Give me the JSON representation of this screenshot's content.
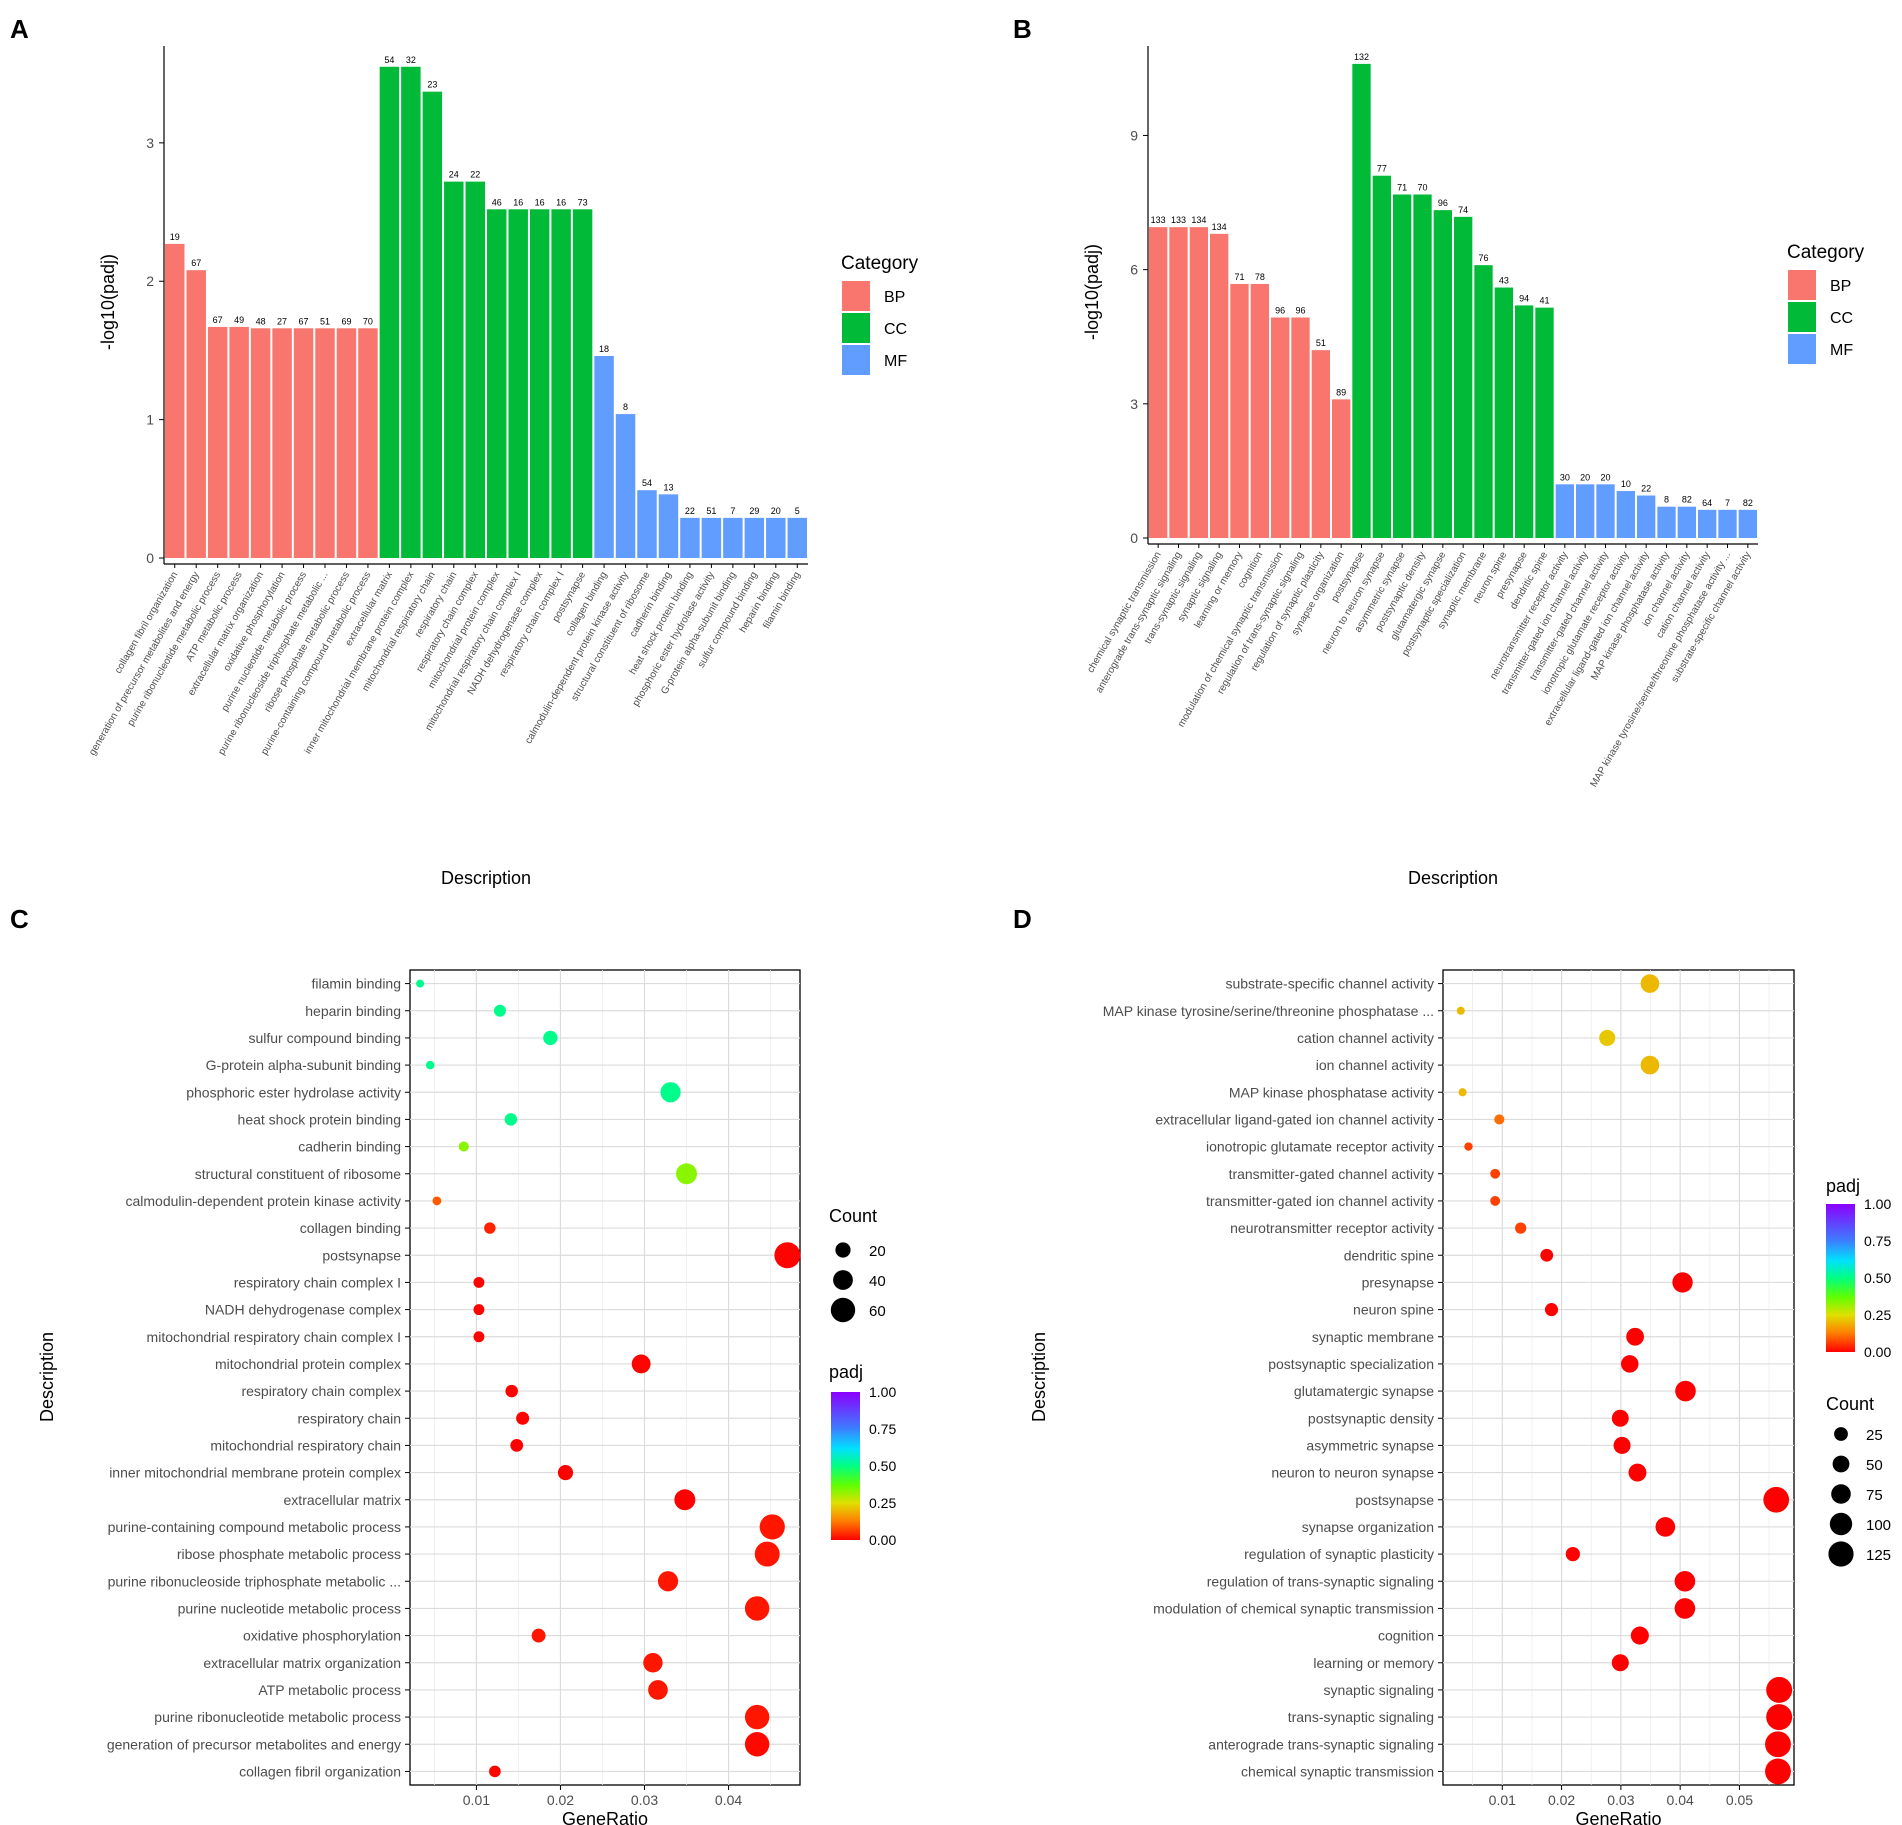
{
  "figure": {
    "panel_letters": [
      "A",
      "B",
      "C",
      "D"
    ],
    "category_legend": {
      "title": "Category",
      "items": [
        {
          "key": "BP",
          "color": "#F8766D"
        },
        {
          "key": "CC",
          "color": "#00BA38"
        },
        {
          "key": "MF",
          "color": "#619CFF"
        }
      ]
    },
    "colorbar": {
      "title": "padj",
      "ticks": [
        "1.00",
        "0.75",
        "0.50",
        "0.25",
        "0.00"
      ]
    }
  },
  "chart_data": [
    {
      "panel": "A",
      "type": "bar",
      "xlabel": "Description",
      "ylabel": "-log10(padj)",
      "ylim": [
        0,
        3.7
      ],
      "yticks": [
        0,
        1,
        2,
        3
      ],
      "categories": [
        "collagen fibril organization",
        "generation of precursor metabolites and energy",
        "purine ribonucleotide metabolic process",
        "ATP metabolic process",
        "extracellular matrix organization",
        "oxidative phosphorylation",
        "purine nucleotide metabolic process",
        "purine ribonucleoside triphosphate metabolic ...",
        "ribose phosphate metabolic process",
        "purine-containing compound metabolic process",
        "extracellular matrix",
        "inner mitochondrial membrane protein complex",
        "mitochondrial respiratory chain",
        "respiratory chain",
        "respiratory chain complex",
        "mitochondrial protein complex",
        "mitochondrial respiratory chain complex I",
        "NADH dehydrogenase complex",
        "respiratory chain complex I",
        "postsynapse",
        "collagen binding",
        "calmodulin-dependent protein kinase activity",
        "structural constituent of ribosome",
        "cadherin binding",
        "heat shock protein binding",
        "phosphoric ester hydrolase activity",
        "G-protein alpha-subunit binding",
        "sulfur compound binding",
        "heparin binding",
        "filamin binding"
      ],
      "values": [
        2.27,
        2.08,
        1.67,
        1.67,
        1.66,
        1.66,
        1.66,
        1.66,
        1.66,
        1.66,
        3.55,
        3.55,
        3.37,
        2.72,
        2.72,
        2.52,
        2.52,
        2.52,
        2.52,
        2.52,
        1.46,
        1.04,
        0.49,
        0.46,
        0.29,
        0.29,
        0.29,
        0.29,
        0.29,
        0.29
      ],
      "groups": [
        "BP",
        "BP",
        "BP",
        "BP",
        "BP",
        "BP",
        "BP",
        "BP",
        "BP",
        "BP",
        "CC",
        "CC",
        "CC",
        "CC",
        "CC",
        "CC",
        "CC",
        "CC",
        "CC",
        "CC",
        "MF",
        "MF",
        "MF",
        "MF",
        "MF",
        "MF",
        "MF",
        "MF",
        "MF",
        "MF"
      ],
      "counts": [
        19,
        67,
        67,
        49,
        48,
        27,
        67,
        51,
        69,
        70,
        54,
        32,
        23,
        24,
        22,
        46,
        16,
        16,
        16,
        73,
        18,
        8,
        54,
        13,
        22,
        51,
        7,
        29,
        20,
        5
      ]
    },
    {
      "panel": "B",
      "type": "bar",
      "xlabel": "Description",
      "ylabel": "-log10(padj)",
      "ylim": [
        0,
        11
      ],
      "yticks": [
        0,
        3,
        6,
        9
      ],
      "categories": [
        "chemical synaptic transmission",
        "anterograde trans-synaptic signaling",
        "trans-synaptic signaling",
        "synaptic signaling",
        "learning or memory",
        "cognition",
        "modulation of chemical synaptic transmission",
        "regulation of trans-synaptic signaling",
        "regulation of synaptic plasticity",
        "synapse organization",
        "postsynapse",
        "neuron to neuron synapse",
        "asymmetric synapse",
        "postsynaptic density",
        "glutamatergic synapse",
        "postsynaptic specialization",
        "synaptic membrane",
        "neuron spine",
        "presynapse",
        "dendritic spine",
        "neurotransmitter receptor activity",
        "transmitter-gated ion channel activity",
        "transmitter-gated channel activity",
        "ionotropic glutamate receptor activity",
        "extracellular ligand-gated ion channel activity",
        "MAP kinase phosphatase activity",
        "ion channel activity",
        "cation channel activity",
        "MAP kinase tyrosine/serine/threonine phosphatase activity ...",
        "substrate-specific channel activity"
      ],
      "values": [
        6.95,
        6.95,
        6.95,
        6.8,
        5.68,
        5.68,
        4.93,
        4.93,
        4.2,
        3.1,
        10.6,
        8.1,
        7.68,
        7.68,
        7.33,
        7.18,
        6.1,
        5.6,
        5.2,
        5.15,
        1.2,
        1.2,
        1.2,
        1.05,
        0.95,
        0.7,
        0.7,
        0.63,
        0.63,
        0.63
      ],
      "groups": [
        "BP",
        "BP",
        "BP",
        "BP",
        "BP",
        "BP",
        "BP",
        "BP",
        "BP",
        "BP",
        "CC",
        "CC",
        "CC",
        "CC",
        "CC",
        "CC",
        "CC",
        "CC",
        "CC",
        "CC",
        "MF",
        "MF",
        "MF",
        "MF",
        "MF",
        "MF",
        "MF",
        "MF",
        "MF",
        "MF"
      ],
      "counts": [
        133,
        133,
        134,
        134,
        71,
        78,
        96,
        96,
        51,
        89,
        132,
        77,
        71,
        70,
        96,
        74,
        76,
        43,
        94,
        41,
        30,
        20,
        20,
        10,
        22,
        8,
        82,
        64,
        7,
        82
      ]
    },
    {
      "panel": "C",
      "type": "scatter",
      "xlabel": "GeneRatio",
      "ylabel": "Description",
      "xlim": [
        0.0021,
        0.0485
      ],
      "xticks": [
        0.01,
        0.02,
        0.03,
        0.04
      ],
      "xticklabels": [
        "0.01",
        "0.02",
        "0.03",
        "0.04"
      ],
      "count_legend": {
        "title": "Count",
        "values": [
          20,
          40,
          60
        ]
      },
      "count_range": [
        5,
        73
      ],
      "terms": [
        "filamin binding",
        "heparin binding",
        "sulfur compound binding",
        "G-protein alpha-subunit binding",
        "phosphoric ester hydrolase activity",
        "heat shock protein binding",
        "cadherin binding",
        "structural constituent of ribosome",
        "calmodulin-dependent protein kinase activity",
        "collagen binding",
        "postsynapse",
        "respiratory chain complex I",
        "NADH dehydrogenase complex",
        "mitochondrial respiratory chain complex I",
        "mitochondrial protein complex",
        "respiratory chain complex",
        "respiratory chain",
        "mitochondrial respiratory chain",
        "inner mitochondrial membrane protein complex",
        "extracellular matrix",
        "purine-containing compound metabolic process",
        "ribose phosphate metabolic process",
        "purine ribonucleoside triphosphate metabolic ...",
        "purine nucleotide metabolic process",
        "oxidative phosphorylation",
        "extracellular matrix organization",
        "ATP metabolic process",
        "purine ribonucleotide metabolic process",
        "generation of precursor metabolites and energy",
        "collagen fibril organization"
      ],
      "gene_ratio": [
        0.0033,
        0.0128,
        0.0188,
        0.0045,
        0.0331,
        0.0141,
        0.0085,
        0.035,
        0.0053,
        0.0116,
        0.047,
        0.0103,
        0.0103,
        0.0103,
        0.0296,
        0.0142,
        0.0155,
        0.0148,
        0.0206,
        0.0348,
        0.0452,
        0.0446,
        0.0328,
        0.0434,
        0.0174,
        0.031,
        0.0316,
        0.0434,
        0.0434,
        0.0122
      ],
      "count": [
        5,
        20,
        29,
        7,
        51,
        22,
        13,
        54,
        8,
        18,
        73,
        16,
        16,
        16,
        46,
        22,
        24,
        23,
        32,
        54,
        70,
        69,
        51,
        67,
        27,
        48,
        49,
        67,
        67,
        19
      ],
      "padj": [
        0.51,
        0.51,
        0.51,
        0.51,
        0.51,
        0.51,
        0.33,
        0.33,
        0.09,
        0.035,
        0.003,
        0.003,
        0.003,
        0.003,
        0.003,
        0.002,
        0.002,
        0.0004,
        0.0003,
        0.0003,
        0.022,
        0.022,
        0.022,
        0.022,
        0.022,
        0.022,
        0.022,
        0.022,
        0.008,
        0.005
      ]
    },
    {
      "panel": "D",
      "type": "scatter",
      "xlabel": "GeneRatio",
      "ylabel": "Description",
      "xlim": [
        0.0,
        0.0592
      ],
      "xticks": [
        0.01,
        0.02,
        0.03,
        0.04,
        0.05
      ],
      "xticklabels": [
        "0.01",
        "0.02",
        "0.03",
        "0.04",
        "0.05"
      ],
      "count_legend": {
        "title": "Count",
        "values": [
          25,
          50,
          75,
          100,
          125
        ]
      },
      "count_range": [
        7,
        134
      ],
      "terms": [
        "substrate-specific channel activity",
        "MAP kinase tyrosine/serine/threonine phosphatase ...",
        "cation channel activity",
        "ion channel activity",
        "MAP kinase phosphatase activity",
        "extracellular ligand-gated ion channel activity",
        "ionotropic glutamate receptor activity",
        "transmitter-gated channel activity",
        "transmitter-gated ion channel activity",
        "neurotransmitter receptor activity",
        "dendritic spine",
        "presynapse",
        "neuron spine",
        "synaptic membrane",
        "postsynaptic specialization",
        "glutamatergic synapse",
        "postsynaptic density",
        "asymmetric synapse",
        "neuron to neuron synapse",
        "postsynapse",
        "synapse organization",
        "regulation of synaptic plasticity",
        "regulation of trans-synaptic signaling",
        "modulation of chemical synaptic transmission",
        "cognition",
        "learning or memory",
        "synaptic signaling",
        "trans-synaptic signaling",
        "anterograde trans-synaptic signaling",
        "chemical synaptic transmission"
      ],
      "gene_ratio": [
        0.0349,
        0.003,
        0.0277,
        0.0349,
        0.0033,
        0.0095,
        0.0043,
        0.0088,
        0.0088,
        0.0131,
        0.0175,
        0.0404,
        0.0183,
        0.0324,
        0.0315,
        0.0409,
        0.0299,
        0.0302,
        0.0328,
        0.0562,
        0.0375,
        0.0219,
        0.0408,
        0.0408,
        0.0332,
        0.0299,
        0.0567,
        0.0567,
        0.0565,
        0.0565
      ],
      "count": [
        82,
        7,
        64,
        82,
        8,
        22,
        10,
        20,
        20,
        30,
        41,
        94,
        43,
        76,
        74,
        96,
        70,
        71,
        77,
        132,
        89,
        51,
        96,
        96,
        78,
        71,
        134,
        134,
        133,
        133
      ],
      "padj": [
        0.2,
        0.2,
        0.22,
        0.2,
        0.2,
        0.11,
        0.065,
        0.065,
        0.065,
        0.065,
        0.0,
        0.0,
        0.0,
        0.0,
        0.0,
        0.0,
        0.0,
        0.0,
        0.0,
        0.0,
        0.0,
        0.0,
        0.0,
        0.0,
        0.0,
        0.0,
        0.0,
        0.0,
        0.0,
        0.0
      ]
    }
  ]
}
